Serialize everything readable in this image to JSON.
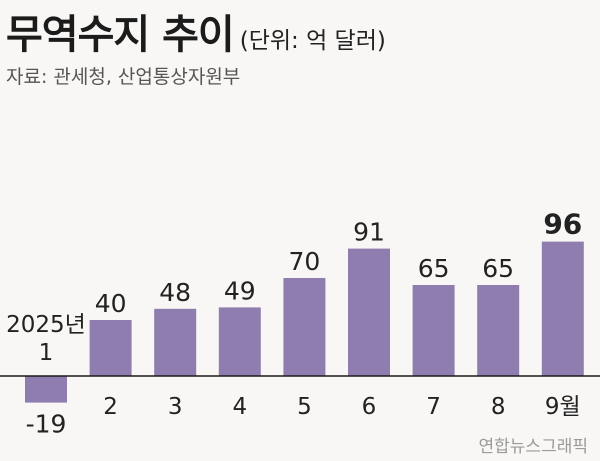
{
  "header": {
    "title": "무역수지 추이",
    "unit": "(단위: 억 달러)",
    "source": "자료: 관세청, 산업통상자원부"
  },
  "credit": "연합뉴스그래픽",
  "colors": {
    "bar": "#8f7db0",
    "text": "#222222",
    "baseline": "#1a1a1a"
  },
  "chart_data": {
    "type": "bar",
    "categories": [
      "2025년\n1",
      "2",
      "3",
      "4",
      "5",
      "6",
      "7",
      "8",
      "9월"
    ],
    "values": [
      -19,
      40,
      48,
      49,
      70,
      91,
      65,
      65,
      96
    ],
    "value_labels": [
      "-19",
      "40",
      "48",
      "49",
      "70",
      "91",
      "65",
      "65",
      "96"
    ],
    "highlight_last": true,
    "ylabel": "",
    "xlabel": "",
    "ylim": [
      -19,
      96
    ],
    "grid": false
  }
}
